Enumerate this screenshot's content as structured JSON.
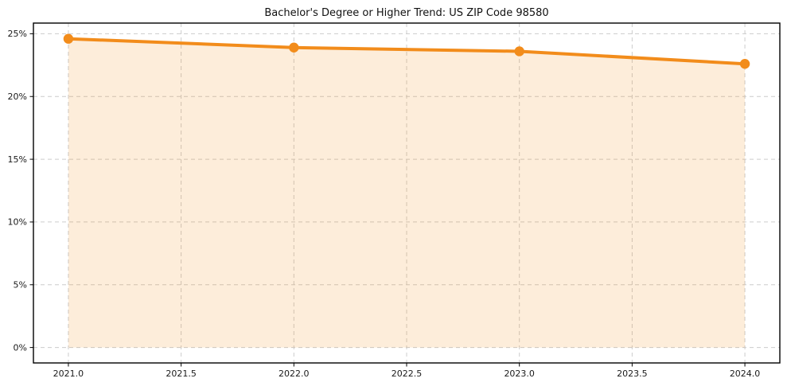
{
  "chart_data": {
    "type": "area",
    "title": "Bachelor's Degree or Higher Trend: US ZIP Code 98580",
    "x": [
      2021,
      2022,
      2023,
      2024
    ],
    "values": [
      24.6,
      23.9,
      23.6,
      22.6
    ],
    "xlabel": "",
    "ylabel": "",
    "xlim": [
      2020.845,
      2024.155
    ],
    "ylim": [
      -1.23,
      25.85
    ],
    "x_ticks": [
      2021.0,
      2021.5,
      2022.0,
      2022.5,
      2023.0,
      2023.5,
      2024.0
    ],
    "x_tick_labels": [
      "2021.0",
      "2021.5",
      "2022.0",
      "2022.5",
      "2023.0",
      "2023.5",
      "2024.0"
    ],
    "y_ticks": [
      0,
      5,
      10,
      15,
      20,
      25
    ],
    "y_tick_labels": [
      "0%",
      "5%",
      "10%",
      "15%",
      "20%",
      "25%"
    ],
    "grid": true,
    "grid_style": "dashed",
    "legend": false,
    "fill_to_y": 0,
    "line_color": "#F28C1B",
    "marker_color": "#F28C1B",
    "fill_color": "rgba(242,140,27,0.16)",
    "grid_color": "#cccccc",
    "spine_color": "#000000",
    "text_color": "#1a1a1a",
    "background_color": "#ffffff"
  }
}
